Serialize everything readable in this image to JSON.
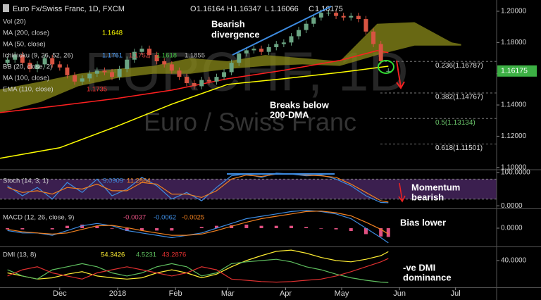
{
  "chart_data": [
    {
      "type": "candlestick",
      "title": "Euro Fx/Swiss Franc, 1D, FXCM",
      "ohlc_labels": [
        "O",
        "H",
        "L",
        "C"
      ],
      "watermark": [
        "EURCHF, 1D",
        "Euro / Swiss Franc"
      ],
      "studies": [
        "Vol (20)",
        "MA (50, close)",
        "BB (20, close, 2)",
        "MA (100, close)"
      ],
      "annotations": [
        "Bearish",
        "divergence",
        "Breaks below",
        "200-DMA"
      ],
      "xlim": [
        -2,
        264
      ],
      "ylim": [
        1.099,
        1.2072
      ],
      "yticks": [
        {
          "value": 1.2,
          "label": "1.20000"
        },
        {
          "value": 1.18,
          "label": "1.18000"
        },
        {
          "value": 1.16,
          "label": "1.16000"
        },
        {
          "value": 1.14,
          "label": "1.14000"
        },
        {
          "value": 1.12,
          "label": "1.12000"
        },
        {
          "value": 1.1,
          "label": "1.10000"
        }
      ],
      "up_color": "#6ba583",
      "down_color": "#d75442",
      "price_tag_color": "#3cb044",
      "x": [
        2,
        6,
        10,
        14,
        18,
        22,
        26,
        30,
        34,
        38,
        42,
        46,
        50,
        54,
        58,
        62,
        66,
        70,
        74,
        78,
        82,
        86,
        90,
        94,
        98,
        102,
        106,
        110,
        114,
        118,
        122,
        126,
        130,
        134,
        138,
        142,
        146,
        150,
        154,
        158,
        162,
        166,
        170,
        174,
        178,
        182,
        186,
        190,
        194,
        198,
        202,
        206
      ],
      "open": [
        1.167,
        1.169,
        1.172,
        1.167,
        1.163,
        1.166,
        1.17,
        1.166,
        1.164,
        1.159,
        1.155,
        1.157,
        1.16,
        1.162,
        1.161,
        1.158,
        1.163,
        1.169,
        1.174,
        1.176,
        1.172,
        1.168,
        1.166,
        1.162,
        1.158,
        1.154,
        1.152,
        1.156,
        1.155,
        1.158,
        1.161,
        1.167,
        1.173,
        1.175,
        1.176,
        1.174,
        1.177,
        1.179,
        1.18,
        1.184,
        1.188,
        1.192,
        1.196,
        1.199,
        1.199,
        1.197,
        1.196,
        1.197,
        1.195,
        1.187,
        1.179,
        1.16164
      ],
      "high": [
        1.171,
        1.174,
        1.174,
        1.169,
        1.168,
        1.172,
        1.172,
        1.168,
        1.166,
        1.161,
        1.159,
        1.162,
        1.164,
        1.164,
        1.163,
        1.165,
        1.171,
        1.176,
        1.178,
        1.178,
        1.174,
        1.17,
        1.168,
        1.164,
        1.16,
        1.156,
        1.158,
        1.158,
        1.16,
        1.163,
        1.169,
        1.175,
        1.177,
        1.178,
        1.178,
        1.179,
        1.181,
        1.182,
        1.186,
        1.19,
        1.194,
        1.198,
        1.201,
        1.201,
        1.201,
        1.199,
        1.199,
        1.199,
        1.197,
        1.189,
        1.181,
        1.16347
      ],
      "low": [
        1.165,
        1.167,
        1.165,
        1.161,
        1.161,
        1.164,
        1.164,
        1.162,
        1.157,
        1.153,
        1.153,
        1.155,
        1.158,
        1.159,
        1.156,
        1.156,
        1.161,
        1.167,
        1.172,
        1.17,
        1.166,
        1.164,
        1.16,
        1.156,
        1.152,
        1.15,
        1.15,
        1.153,
        1.153,
        1.156,
        1.159,
        1.165,
        1.171,
        1.173,
        1.172,
        1.172,
        1.175,
        1.177,
        1.178,
        1.182,
        1.186,
        1.19,
        1.194,
        1.197,
        1.195,
        1.194,
        1.194,
        1.193,
        1.185,
        1.177,
        1.166,
        1.16066
      ],
      "close": [
        1.169,
        1.172,
        1.167,
        1.163,
        1.166,
        1.17,
        1.166,
        1.164,
        1.159,
        1.155,
        1.157,
        1.16,
        1.162,
        1.161,
        1.158,
        1.163,
        1.169,
        1.174,
        1.176,
        1.172,
        1.168,
        1.166,
        1.162,
        1.158,
        1.154,
        1.152,
        1.156,
        1.155,
        1.158,
        1.161,
        1.167,
        1.173,
        1.175,
        1.176,
        1.174,
        1.177,
        1.179,
        1.18,
        1.184,
        1.188,
        1.192,
        1.196,
        1.199,
        1.199,
        1.197,
        1.196,
        1.197,
        1.195,
        1.187,
        1.179,
        1.168,
        1.16175
      ],
      "series": [
        {
          "name": "MA (200, close)",
          "color": "#ffff00",
          "x": [
            -2,
            30,
            60,
            90,
            120,
            150,
            180,
            206
          ],
          "values": [
            1.1059,
            1.1126,
            1.1261,
            1.1405,
            1.1532,
            1.1568,
            1.1608,
            1.1648
          ]
        },
        {
          "name": "EMA (110, close)",
          "color": "#ff2020",
          "x": [
            -2,
            30,
            60,
            90,
            120,
            150,
            180,
            200,
            206
          ],
          "values": [
            1.1351,
            1.1396,
            1.1441,
            1.1495,
            1.1568,
            1.1622,
            1.1685,
            1.1748,
            1.1735
          ]
        }
      ],
      "cloud": {
        "name": "Ichimoku (9, 26, 52, 26)",
        "color": "#8b8b1a",
        "legend_values": [
          1.1761,
          1.1752,
          1.1618,
          1.1855
        ],
        "legend_colors": [
          "#4aa0ff",
          "#d04040",
          "#40c040",
          "#b0b0b0"
        ],
        "x": [
          -2,
          20,
          40,
          60,
          80,
          100,
          120,
          140,
          160,
          180,
          200,
          220,
          240,
          245
        ],
        "span_a": [
          1.15,
          1.155,
          1.16,
          1.163,
          1.165,
          1.17,
          1.168,
          1.172,
          1.17,
          1.168,
          1.192,
          1.193,
          1.18,
          1.179
        ],
        "span_b": [
          1.135,
          1.142,
          1.152,
          1.157,
          1.16,
          1.16,
          1.163,
          1.165,
          1.166,
          1.165,
          1.172,
          1.178,
          1.178,
          1.178
        ]
      },
      "fib_levels": [
        {
          "value": 1.16787,
          "label": "0.236(1.16787)",
          "color": "#dddddd"
        },
        {
          "value": 1.14767,
          "label": "0.382(1.14767)",
          "color": "#dddddd"
        },
        {
          "value": 1.13134,
          "label": "0.5(1.13134)",
          "color": "#6ac46a"
        },
        {
          "value": 1.11501,
          "label": "0.618(1.11501)",
          "color": "#dddddd"
        }
      ]
    },
    {
      "type": "line",
      "title": "Stoch (14, 3, 1)",
      "annotations": [
        "Momentum",
        "bearish"
      ],
      "xlim": [
        -2,
        264
      ],
      "ylim": [
        -8,
        106
      ],
      "yticks": [
        {
          "value": 100,
          "label": "100.0000"
        },
        {
          "value": 0,
          "label": "0.0000"
        }
      ],
      "band": [
        20,
        80
      ],
      "band_color": "#3b1f4f",
      "x": [
        2,
        10,
        18,
        26,
        34,
        42,
        50,
        58,
        66,
        74,
        82,
        90,
        98,
        106,
        114,
        122,
        130,
        138,
        146,
        154,
        162,
        170,
        178,
        186,
        194,
        202,
        206
      ],
      "series": [
        {
          "color": "#3d8be0",
          "values": [
            60,
            30,
            55,
            20,
            70,
            40,
            80,
            30,
            50,
            85,
            60,
            20,
            40,
            15,
            55,
            90,
            95,
            85,
            98,
            95,
            90,
            92,
            80,
            60,
            30,
            10,
            9.0909
          ]
        },
        {
          "color": "#f08020",
          "values": [
            55,
            40,
            45,
            35,
            55,
            50,
            65,
            45,
            45,
            70,
            65,
            35,
            35,
            25,
            45,
            80,
            92,
            88,
            95,
            96,
            92,
            90,
            85,
            65,
            40,
            15,
            11.2864
          ]
        }
      ]
    },
    {
      "type": "line",
      "title": "MACD (12, 26, close, 9)",
      "annotations": [
        "Bias lower"
      ],
      "xlim": [
        -2,
        264
      ],
      "ylim": [
        -0.0077,
        0.008
      ],
      "yticks": [
        {
          "value": 0,
          "label": "0.0000"
        }
      ],
      "x": [
        2,
        10,
        18,
        26,
        34,
        42,
        50,
        58,
        66,
        74,
        82,
        90,
        98,
        106,
        114,
        122,
        130,
        138,
        146,
        154,
        162,
        170,
        178,
        186,
        194,
        202,
        206
      ],
      "histogram": {
        "color": "#e05080",
        "values": [
          -0.0005,
          -0.0005,
          0,
          -0.0005,
          0.001,
          0.0015,
          0.001,
          -0.0002,
          -0.0012,
          -0.001,
          -0.001,
          -0.001,
          0,
          0.0005,
          0.001,
          0.0012,
          0.0015,
          0.001,
          0.001,
          0.001,
          0.0005,
          -0.0002,
          -0.0005,
          -0.0012,
          -0.0025,
          -0.0035,
          -0.0037
        ]
      },
      "series": [
        {
          "color": "#3d8be0",
          "values": [
            -0.001,
            -0.002,
            -0.002,
            -0.003,
            -0.001,
            0.001,
            0.002,
            0.001,
            -0.001,
            -0.002,
            -0.003,
            -0.004,
            -0.003,
            -0.002,
            0,
            0.002,
            0.004,
            0.005,
            0.006,
            0.007,
            0.0075,
            0.007,
            0.006,
            0.004,
            0,
            -0.004,
            -0.0062
          ]
        },
        {
          "color": "#f08020",
          "values": [
            -0.0005,
            -0.0015,
            -0.002,
            -0.0025,
            -0.002,
            -0.0005,
            0.001,
            0.0012,
            0.0002,
            -0.001,
            -0.002,
            -0.003,
            -0.003,
            -0.0025,
            -0.001,
            0.0008,
            0.0025,
            0.004,
            0.005,
            0.006,
            0.007,
            0.0072,
            0.0065,
            0.0052,
            0.0025,
            -0.0005,
            -0.0025
          ]
        }
      ]
    },
    {
      "type": "line",
      "title": "DMI (13, 8)",
      "annotations": [
        "-ve DMI",
        "dominance"
      ],
      "xlim": [
        -2,
        264
      ],
      "ylim": [
        -3.4,
        61.7
      ],
      "yticks": [
        {
          "value": 40,
          "label": "40.0000"
        }
      ],
      "xticks": [
        {
          "value": 30,
          "label": "Dec"
        },
        {
          "value": 61,
          "label": "2018"
        },
        {
          "value": 92,
          "label": "Feb"
        },
        {
          "value": 120,
          "label": "Mar"
        },
        {
          "value": 151,
          "label": "Apr"
        },
        {
          "value": 181,
          "label": "May"
        },
        {
          "value": 212,
          "label": "Jun"
        },
        {
          "value": 242,
          "label": "Jul"
        }
      ],
      "x": [
        2,
        10,
        18,
        26,
        34,
        42,
        50,
        58,
        66,
        74,
        82,
        90,
        98,
        106,
        114,
        122,
        130,
        138,
        146,
        154,
        162,
        170,
        178,
        186,
        194,
        202,
        206
      ],
      "series": [
        {
          "color": "#ffee33",
          "values": [
            20,
            15,
            10,
            12,
            18,
            22,
            15,
            12,
            10,
            12,
            20,
            25,
            20,
            12,
            18,
            30,
            40,
            48,
            55,
            57,
            52,
            45,
            40,
            38,
            42,
            48,
            54.3426
          ]
        },
        {
          "color": "#5fbf5f",
          "values": [
            25,
            15,
            10,
            25,
            30,
            35,
            30,
            20,
            15,
            20,
            30,
            35,
            30,
            15,
            20,
            35,
            38,
            40,
            42,
            38,
            30,
            25,
            18,
            12,
            8,
            5,
            4.5231
          ]
        },
        {
          "color": "#e03030",
          "values": [
            15,
            25,
            30,
            20,
            15,
            10,
            20,
            25,
            30,
            25,
            20,
            15,
            20,
            30,
            25,
            10,
            8,
            6,
            5,
            6,
            8,
            10,
            15,
            22,
            30,
            38,
            43.2876
          ]
        }
      ]
    }
  ]
}
